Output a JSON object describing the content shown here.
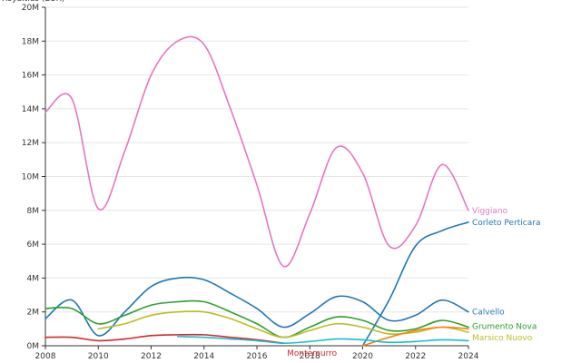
{
  "chart_data": {
    "type": "line",
    "ylabel": "Royalties (EUR)",
    "xlim": [
      2008,
      2024
    ],
    "ylim": [
      0,
      20000000
    ],
    "x_ticks": [
      2008,
      2010,
      2012,
      2014,
      2016,
      2018,
      2020,
      2022,
      2024
    ],
    "x_tick_labels": [
      "2008",
      "2010",
      "2012",
      "2014",
      "2016",
      "2018",
      "2020",
      "2022",
      "2024"
    ],
    "y_ticks": [
      0,
      2000000,
      4000000,
      6000000,
      8000000,
      10000000,
      12000000,
      14000000,
      16000000,
      18000000,
      20000000
    ],
    "y_tick_labels": [
      "0M",
      "2M",
      "4M",
      "6M",
      "8M",
      "10M",
      "12M",
      "14M",
      "16M",
      "18M",
      "20M"
    ],
    "grid": true,
    "series": [
      {
        "name": "Viggiano",
        "color": "#e377c2",
        "x": [
          2008,
          2009,
          2010,
          2011,
          2012,
          2013,
          2014,
          2015,
          2016,
          2017,
          2018,
          2019,
          2020,
          2021,
          2022,
          2023,
          2024
        ],
        "values": [
          13800000,
          14600000,
          8100000,
          11500000,
          16000000,
          18000000,
          17800000,
          14000000,
          9500000,
          4700000,
          7800000,
          11700000,
          10200000,
          5900000,
          7100000,
          10700000,
          8000000
        ]
      },
      {
        "name": "Corleto Perticara",
        "color": "#1f77b4",
        "x": [
          2020,
          2021,
          2022,
          2023,
          2024
        ],
        "values": [
          0,
          2700000,
          5900000,
          6800000,
          7300000
        ]
      },
      {
        "name": "Calvello",
        "color": "#1f77b4",
        "x": [
          2008,
          2009,
          2010,
          2011,
          2012,
          2013,
          2014,
          2015,
          2016,
          2017,
          2018,
          2019,
          2020,
          2021,
          2022,
          2023,
          2024
        ],
        "values": [
          1600000,
          2700000,
          600000,
          2000000,
          3500000,
          4000000,
          3900000,
          3100000,
          2200000,
          1100000,
          1900000,
          2900000,
          2600000,
          1500000,
          1800000,
          2700000,
          2000000
        ]
      },
      {
        "name": "Grumento Nova",
        "color": "#2ca02c",
        "x": [
          2008,
          2009,
          2010,
          2011,
          2012,
          2013,
          2014,
          2015,
          2016,
          2017,
          2018,
          2019,
          2020,
          2021,
          2022,
          2023,
          2024
        ],
        "values": [
          2200000,
          2200000,
          1300000,
          1800000,
          2400000,
          2600000,
          2600000,
          2000000,
          1300000,
          500000,
          1100000,
          1700000,
          1500000,
          900000,
          1000000,
          1500000,
          1100000
        ]
      },
      {
        "name": "Marsico Nuovo",
        "color": "#bcbd22",
        "x": [
          2010,
          2011,
          2012,
          2013,
          2014,
          2015,
          2016,
          2017,
          2018,
          2019,
          2020,
          2021,
          2022,
          2023,
          2024
        ],
        "values": [
          1000000,
          1300000,
          1800000,
          2000000,
          2000000,
          1600000,
          1000000,
          500000,
          900000,
          1300000,
          1100000,
          700000,
          800000,
          1100000,
          800000
        ]
      },
      {
        "name": "Montemurro",
        "color": "#d62728",
        "x": [
          2008,
          2009,
          2010,
          2011,
          2012,
          2013,
          2014,
          2015,
          2016,
          2017
        ],
        "values": [
          500000,
          500000,
          300000,
          400000,
          600000,
          650000,
          650000,
          500000,
          350000,
          150000
        ]
      },
      {
        "name": "",
        "color": "#ff7f0e",
        "x": [
          2020,
          2021,
          2022,
          2023,
          2024
        ],
        "values": [
          0,
          500000,
          900000,
          1100000,
          1000000
        ]
      },
      {
        "name": "",
        "color": "#17becf",
        "x": [
          2013,
          2014,
          2015,
          2016,
          2017,
          2018,
          2019,
          2020,
          2021,
          2022,
          2023,
          2024
        ],
        "values": [
          550000,
          500000,
          400000,
          300000,
          150000,
          250000,
          400000,
          350000,
          200000,
          250000,
          350000,
          300000
        ]
      }
    ]
  }
}
